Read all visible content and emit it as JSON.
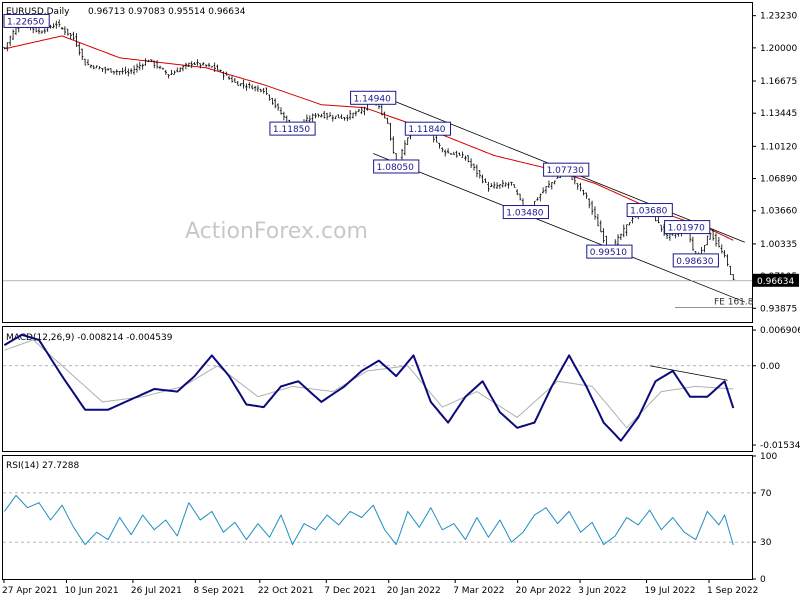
{
  "chart_data": [
    {
      "type": "ohlc",
      "panel": "price",
      "title": "EURUSD,Daily",
      "ohlc_header": "0.96713 0.97083 0.95514 0.96634",
      "ylim": [
        0.925,
        1.245
      ],
      "y_ticks": [
        "1.23230",
        "1.20000",
        "1.16675",
        "1.13445",
        "1.10120",
        "1.06890",
        "1.03660",
        "1.00335",
        "0.97105",
        "0.93875"
      ],
      "y_tick_values": [
        1.2323,
        1.2,
        1.16675,
        1.13445,
        1.1012,
        1.0689,
        1.0366,
        1.00335,
        0.97105,
        0.93875
      ],
      "current_price": "0.96634",
      "current_price_value": 0.96634,
      "annotation_fe": "FE 161.8",
      "fe_level": 0.9445,
      "labels": [
        {
          "text": "1.22650",
          "i": 5,
          "v": 1.2265
        },
        {
          "text": "1.11850",
          "i": 100,
          "v": 1.1185
        },
        {
          "text": "1.14940",
          "i": 128,
          "v": 1.1494
        },
        {
          "text": "1.11840",
          "i": 147,
          "v": 1.1184
        },
        {
          "text": "1.08050",
          "i": 136,
          "v": 1.0805
        },
        {
          "text": "1.07730",
          "i": 195,
          "v": 1.0773
        },
        {
          "text": "1.03480",
          "i": 181,
          "v": 1.0348
        },
        {
          "text": "1.03680",
          "i": 224,
          "v": 1.0368
        },
        {
          "text": "1.01970",
          "i": 237,
          "v": 1.0197
        },
        {
          "text": "0.99510",
          "i": 210,
          "v": 0.9951
        },
        {
          "text": "0.98630",
          "i": 240,
          "v": 0.9863
        }
      ],
      "key_points": [
        {
          "i": 0,
          "v": 1.2
        },
        {
          "i": 5,
          "v": 1.2265
        },
        {
          "i": 12,
          "v": 1.216
        },
        {
          "i": 18,
          "v": 1.224
        },
        {
          "i": 24,
          "v": 1.21
        },
        {
          "i": 28,
          "v": 1.184
        },
        {
          "i": 35,
          "v": 1.178
        },
        {
          "i": 43,
          "v": 1.175
        },
        {
          "i": 50,
          "v": 1.188
        },
        {
          "i": 57,
          "v": 1.173
        },
        {
          "i": 65,
          "v": 1.185
        },
        {
          "i": 73,
          "v": 1.18
        },
        {
          "i": 80,
          "v": 1.165
        },
        {
          "i": 90,
          "v": 1.158
        },
        {
          "i": 100,
          "v": 1.1185
        },
        {
          "i": 108,
          "v": 1.133
        },
        {
          "i": 118,
          "v": 1.13
        },
        {
          "i": 124,
          "v": 1.137
        },
        {
          "i": 128,
          "v": 1.1494
        },
        {
          "i": 133,
          "v": 1.125
        },
        {
          "i": 136,
          "v": 1.0805
        },
        {
          "i": 141,
          "v": 1.1184
        },
        {
          "i": 147,
          "v": 1.1184
        },
        {
          "i": 152,
          "v": 1.097
        },
        {
          "i": 160,
          "v": 1.09
        },
        {
          "i": 168,
          "v": 1.06
        },
        {
          "i": 176,
          "v": 1.064
        },
        {
          "i": 181,
          "v": 1.0348
        },
        {
          "i": 188,
          "v": 1.06
        },
        {
          "i": 195,
          "v": 1.0773
        },
        {
          "i": 202,
          "v": 1.05
        },
        {
          "i": 210,
          "v": 0.9951
        },
        {
          "i": 218,
          "v": 1.03
        },
        {
          "i": 224,
          "v": 1.0368
        },
        {
          "i": 230,
          "v": 1.01
        },
        {
          "i": 237,
          "v": 1.0197
        },
        {
          "i": 240,
          "v": 0.9863
        },
        {
          "i": 245,
          "v": 1.015
        },
        {
          "i": 250,
          "v": 0.99
        },
        {
          "i": 253,
          "v": 0.9663
        }
      ],
      "ma_points": [
        {
          "i": 0,
          "v": 1.199
        },
        {
          "i": 20,
          "v": 1.212
        },
        {
          "i": 40,
          "v": 1.19
        },
        {
          "i": 70,
          "v": 1.18
        },
        {
          "i": 90,
          "v": 1.163
        },
        {
          "i": 110,
          "v": 1.143
        },
        {
          "i": 125,
          "v": 1.14
        },
        {
          "i": 150,
          "v": 1.115
        },
        {
          "i": 170,
          "v": 1.092
        },
        {
          "i": 190,
          "v": 1.078
        },
        {
          "i": 205,
          "v": 1.064
        },
        {
          "i": 225,
          "v": 1.038
        },
        {
          "i": 245,
          "v": 1.018
        },
        {
          "i": 253,
          "v": 1.007
        }
      ],
      "channel_upper": [
        {
          "i": 128,
          "v": 1.155
        },
        {
          "i": 257,
          "v": 1.005
        }
      ],
      "channel_lower": [
        {
          "i": 128,
          "v": 1.094
        },
        {
          "i": 257,
          "v": 0.945
        }
      ]
    },
    {
      "type": "line",
      "panel": "macd",
      "label": "MACD(12,26,9) -0.008214 -0.004539",
      "ylim": [
        -0.0165,
        0.0075
      ],
      "y_ticks": [
        "0.006906",
        "0.00",
        "-0.015348"
      ],
      "y_tick_values": [
        0.006906,
        0.0,
        -0.015348
      ],
      "macd_points": [
        {
          "i": 0,
          "v": 0.004
        },
        {
          "i": 6,
          "v": 0.006
        },
        {
          "i": 12,
          "v": 0.005
        },
        {
          "i": 20,
          "v": -0.002
        },
        {
          "i": 28,
          "v": -0.0085
        },
        {
          "i": 36,
          "v": -0.0085
        },
        {
          "i": 44,
          "v": -0.0065
        },
        {
          "i": 52,
          "v": -0.0045
        },
        {
          "i": 60,
          "v": -0.005
        },
        {
          "i": 66,
          "v": -0.002
        },
        {
          "i": 72,
          "v": 0.002
        },
        {
          "i": 78,
          "v": -0.002
        },
        {
          "i": 84,
          "v": -0.0075
        },
        {
          "i": 90,
          "v": -0.008
        },
        {
          "i": 96,
          "v": -0.004
        },
        {
          "i": 102,
          "v": -0.003
        },
        {
          "i": 110,
          "v": -0.007
        },
        {
          "i": 118,
          "v": -0.004
        },
        {
          "i": 124,
          "v": -0.001
        },
        {
          "i": 130,
          "v": 0.001
        },
        {
          "i": 136,
          "v": -0.002
        },
        {
          "i": 142,
          "v": 0.002
        },
        {
          "i": 148,
          "v": -0.007
        },
        {
          "i": 154,
          "v": -0.011
        },
        {
          "i": 160,
          "v": -0.006
        },
        {
          "i": 166,
          "v": -0.003
        },
        {
          "i": 172,
          "v": -0.009
        },
        {
          "i": 178,
          "v": -0.012
        },
        {
          "i": 184,
          "v": -0.011
        },
        {
          "i": 190,
          "v": -0.004
        },
        {
          "i": 196,
          "v": 0.002
        },
        {
          "i": 202,
          "v": -0.004
        },
        {
          "i": 208,
          "v": -0.011
        },
        {
          "i": 214,
          "v": -0.0145
        },
        {
          "i": 220,
          "v": -0.01
        },
        {
          "i": 226,
          "v": -0.003
        },
        {
          "i": 232,
          "v": -0.001
        },
        {
          "i": 238,
          "v": -0.006
        },
        {
          "i": 244,
          "v": -0.006
        },
        {
          "i": 250,
          "v": -0.003
        },
        {
          "i": 253,
          "v": -0.0082
        }
      ],
      "signal_points": [
        {
          "i": 0,
          "v": 0.003
        },
        {
          "i": 10,
          "v": 0.005
        },
        {
          "i": 22,
          "v": -0.001
        },
        {
          "i": 34,
          "v": -0.007
        },
        {
          "i": 48,
          "v": -0.006
        },
        {
          "i": 62,
          "v": -0.004
        },
        {
          "i": 74,
          "v": 0.0
        },
        {
          "i": 88,
          "v": -0.006
        },
        {
          "i": 100,
          "v": -0.004
        },
        {
          "i": 114,
          "v": -0.005
        },
        {
          "i": 126,
          "v": -0.001
        },
        {
          "i": 140,
          "v": 0.0
        },
        {
          "i": 152,
          "v": -0.008
        },
        {
          "i": 164,
          "v": -0.005
        },
        {
          "i": 178,
          "v": -0.01
        },
        {
          "i": 192,
          "v": -0.003
        },
        {
          "i": 204,
          "v": -0.004
        },
        {
          "i": 216,
          "v": -0.012
        },
        {
          "i": 228,
          "v": -0.005
        },
        {
          "i": 240,
          "v": -0.004
        },
        {
          "i": 253,
          "v": -0.0045
        }
      ],
      "divergence_line": [
        {
          "i": 224,
          "v": 0.0
        },
        {
          "i": 251,
          "v": -0.0028
        }
      ]
    },
    {
      "type": "line",
      "panel": "rsi",
      "label": "RSI(14) 27.7288",
      "ylim": [
        0,
        100
      ],
      "y_ticks": [
        "100",
        "70",
        "30",
        "0"
      ],
      "y_tick_values": [
        100,
        70,
        30,
        0
      ],
      "levels": [
        70,
        30
      ],
      "rsi_points": [
        {
          "i": 0,
          "v": 55
        },
        {
          "i": 4,
          "v": 68
        },
        {
          "i": 8,
          "v": 58
        },
        {
          "i": 12,
          "v": 62
        },
        {
          "i": 16,
          "v": 48
        },
        {
          "i": 20,
          "v": 60
        },
        {
          "i": 24,
          "v": 42
        },
        {
          "i": 28,
          "v": 28
        },
        {
          "i": 32,
          "v": 38
        },
        {
          "i": 36,
          "v": 32
        },
        {
          "i": 40,
          "v": 50
        },
        {
          "i": 44,
          "v": 36
        },
        {
          "i": 48,
          "v": 52
        },
        {
          "i": 52,
          "v": 40
        },
        {
          "i": 56,
          "v": 48
        },
        {
          "i": 60,
          "v": 35
        },
        {
          "i": 64,
          "v": 62
        },
        {
          "i": 68,
          "v": 48
        },
        {
          "i": 72,
          "v": 55
        },
        {
          "i": 76,
          "v": 38
        },
        {
          "i": 80,
          "v": 46
        },
        {
          "i": 84,
          "v": 32
        },
        {
          "i": 88,
          "v": 45
        },
        {
          "i": 92,
          "v": 34
        },
        {
          "i": 96,
          "v": 52
        },
        {
          "i": 100,
          "v": 28
        },
        {
          "i": 104,
          "v": 45
        },
        {
          "i": 108,
          "v": 40
        },
        {
          "i": 112,
          "v": 52
        },
        {
          "i": 116,
          "v": 44
        },
        {
          "i": 120,
          "v": 55
        },
        {
          "i": 124,
          "v": 50
        },
        {
          "i": 128,
          "v": 60
        },
        {
          "i": 132,
          "v": 40
        },
        {
          "i": 136,
          "v": 28
        },
        {
          "i": 140,
          "v": 55
        },
        {
          "i": 144,
          "v": 42
        },
        {
          "i": 148,
          "v": 58
        },
        {
          "i": 152,
          "v": 40
        },
        {
          "i": 156,
          "v": 45
        },
        {
          "i": 160,
          "v": 32
        },
        {
          "i": 164,
          "v": 50
        },
        {
          "i": 168,
          "v": 34
        },
        {
          "i": 172,
          "v": 48
        },
        {
          "i": 176,
          "v": 30
        },
        {
          "i": 180,
          "v": 38
        },
        {
          "i": 184,
          "v": 52
        },
        {
          "i": 188,
          "v": 58
        },
        {
          "i": 192,
          "v": 45
        },
        {
          "i": 196,
          "v": 55
        },
        {
          "i": 200,
          "v": 38
        },
        {
          "i": 204,
          "v": 46
        },
        {
          "i": 208,
          "v": 28
        },
        {
          "i": 212,
          "v": 35
        },
        {
          "i": 216,
          "v": 50
        },
        {
          "i": 220,
          "v": 44
        },
        {
          "i": 224,
          "v": 56
        },
        {
          "i": 228,
          "v": 40
        },
        {
          "i": 232,
          "v": 50
        },
        {
          "i": 236,
          "v": 38
        },
        {
          "i": 240,
          "v": 32
        },
        {
          "i": 244,
          "v": 55
        },
        {
          "i": 248,
          "v": 44
        },
        {
          "i": 250,
          "v": 52
        },
        {
          "i": 253,
          "v": 27.7
        }
      ]
    }
  ],
  "x_axis": {
    "n_bars": 260,
    "ticks": [
      {
        "label": "27 Apr 2021",
        "i": 0
      },
      {
        "label": "10 Jun 2021",
        "i": 31
      },
      {
        "label": "26 Jul 2021",
        "i": 64
      },
      {
        "label": "8 Sep 2021",
        "i": 95
      },
      {
        "label": "22 Oct 2021",
        "i": 127
      },
      {
        "label": "7 Dec 2021",
        "i": 160
      },
      {
        "label": "20 Jan 2022",
        "i": 191
      },
      {
        "label": "7 Mar 2022",
        "i": 224
      },
      {
        "label": "20 Apr 2022",
        "i": 255
      },
      {
        "label": "3 Jun 2022",
        "i": 286
      },
      {
        "label": "19 Jul 2022",
        "i": 319
      },
      {
        "label": "1 Sep 2022",
        "i": 350
      }
    ]
  },
  "watermark": "ActionForex.com",
  "colors": {
    "bars": "#000000",
    "moving_average": "#d40000",
    "channel": "#000000",
    "macd": "#0a0a7a",
    "signal": "#b0b0b0",
    "rsi": "#1f8fc0",
    "label_border": "#1a1a8c",
    "label_text": "#1a1a8c",
    "grid_dash": "#999999"
  }
}
